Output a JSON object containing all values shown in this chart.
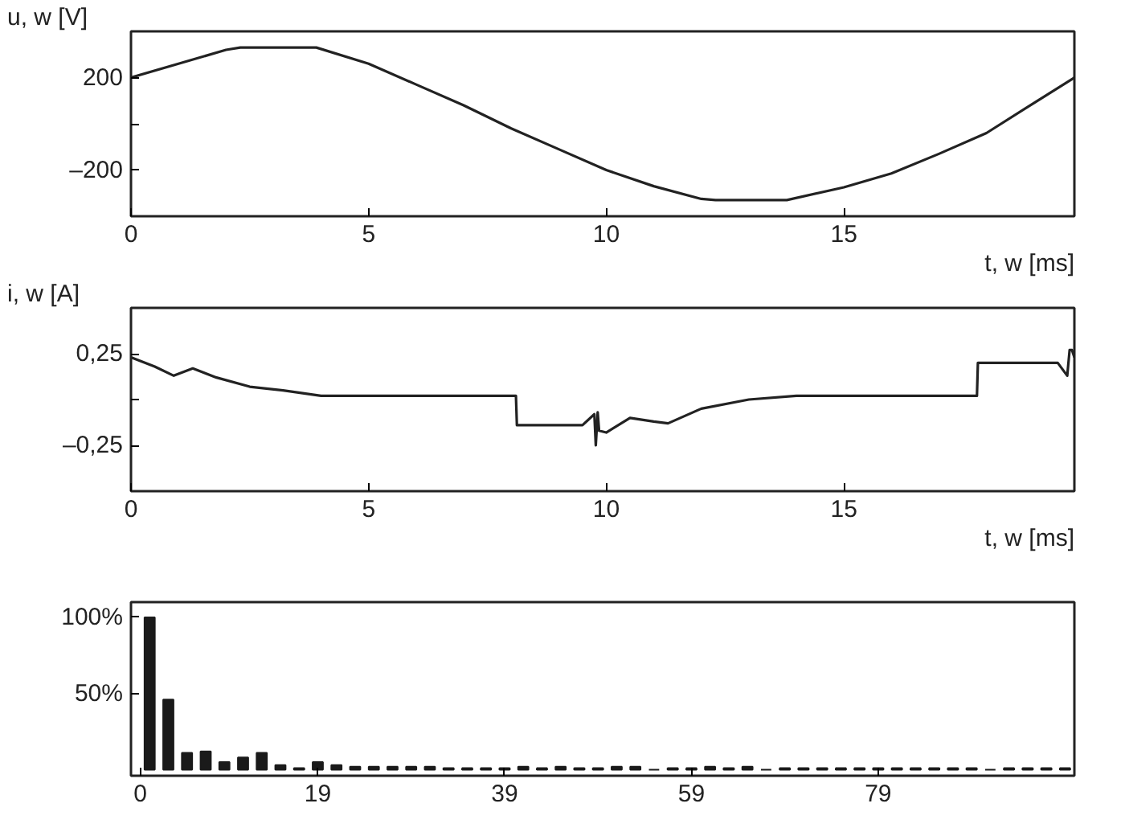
{
  "chart_data": [
    {
      "type": "line",
      "ylabel": "u, w [V]",
      "xlabel": "t, w [ms]",
      "color": "#222222",
      "x": [
        0,
        1,
        2,
        2.3,
        3.9,
        5,
        6,
        7,
        8,
        9,
        10,
        11,
        12,
        12.3,
        13.8,
        15,
        16,
        17,
        18,
        19,
        19.85
      ],
      "values": [
        200,
        260,
        320,
        330,
        330,
        260,
        170,
        80,
        -20,
        -110,
        -200,
        -270,
        -325,
        -330,
        -330,
        -275,
        -215,
        -130,
        -40,
        90,
        200
      ],
      "xlim": [
        0,
        19.85
      ],
      "xticks": [
        0,
        5,
        10,
        15
      ],
      "ylim": [
        -400,
        400
      ],
      "yticks": [
        {
          "value": -200,
          "label": "–200"
        },
        {
          "value": 0,
          "label": null
        },
        200
      ],
      "grid": false
    },
    {
      "type": "line",
      "ylabel": "i, w [A]",
      "xlabel": "t, w [ms]",
      "color": "#222222",
      "x": [
        0,
        0.5,
        0.9,
        1.3,
        1.8,
        2.5,
        3.2,
        4,
        8.1,
        8.12,
        9.5,
        9.75,
        9.78,
        9.82,
        9.85,
        10,
        10.5,
        11,
        11.3,
        12,
        13,
        14,
        17.8,
        17.82,
        19.5,
        19.7,
        19.75,
        19.8,
        19.85
      ],
      "values": [
        0.23,
        0.18,
        0.13,
        0.17,
        0.12,
        0.07,
        0.05,
        0.02,
        0.02,
        -0.14,
        -0.14,
        -0.08,
        -0.25,
        -0.07,
        -0.17,
        -0.18,
        -0.1,
        -0.12,
        -0.13,
        -0.05,
        0.0,
        0.02,
        0.02,
        0.2,
        0.2,
        0.13,
        0.27,
        0.27,
        0.23
      ],
      "xlim": [
        0,
        19.85
      ],
      "xticks": [
        0,
        5,
        10,
        15
      ],
      "ylim": [
        -0.5,
        0.5
      ],
      "yticks": [
        {
          "value": -0.25,
          "label": "–0,25"
        },
        {
          "value": 0,
          "label": null
        },
        {
          "value": 0.25,
          "label": "0,25"
        }
      ],
      "grid": false
    },
    {
      "type": "bar",
      "color": "#1a1a1a",
      "x": [
        1,
        3,
        5,
        7,
        9,
        11,
        13,
        15,
        17,
        19,
        21,
        23,
        25,
        27,
        29,
        31,
        33,
        35,
        37,
        39,
        41,
        43,
        45,
        47,
        49,
        51,
        53,
        55,
        57,
        59,
        61,
        63,
        65,
        67,
        69,
        71,
        73,
        75,
        77,
        79,
        81,
        83,
        85,
        87,
        89,
        91,
        93,
        95,
        97,
        99
      ],
      "values": [
        100,
        46,
        11,
        12,
        5,
        8,
        11,
        3,
        1,
        5,
        3,
        2,
        2,
        2,
        2,
        2,
        1,
        1,
        1,
        1,
        2,
        1,
        2,
        1,
        1,
        2,
        2,
        0,
        1,
        1,
        2,
        1,
        2,
        0,
        1,
        1,
        1,
        1,
        1,
        1,
        1,
        1,
        1,
        1,
        1,
        0,
        1,
        1,
        1,
        1
      ],
      "xlim": [
        -1,
        100
      ],
      "xticks": [
        0,
        19,
        39,
        59,
        79
      ],
      "ylim": [
        -4,
        110
      ],
      "yticks": [
        {
          "value": 50,
          "label": "50%"
        },
        {
          "value": 100,
          "label": "100%"
        }
      ],
      "grid": false
    }
  ]
}
